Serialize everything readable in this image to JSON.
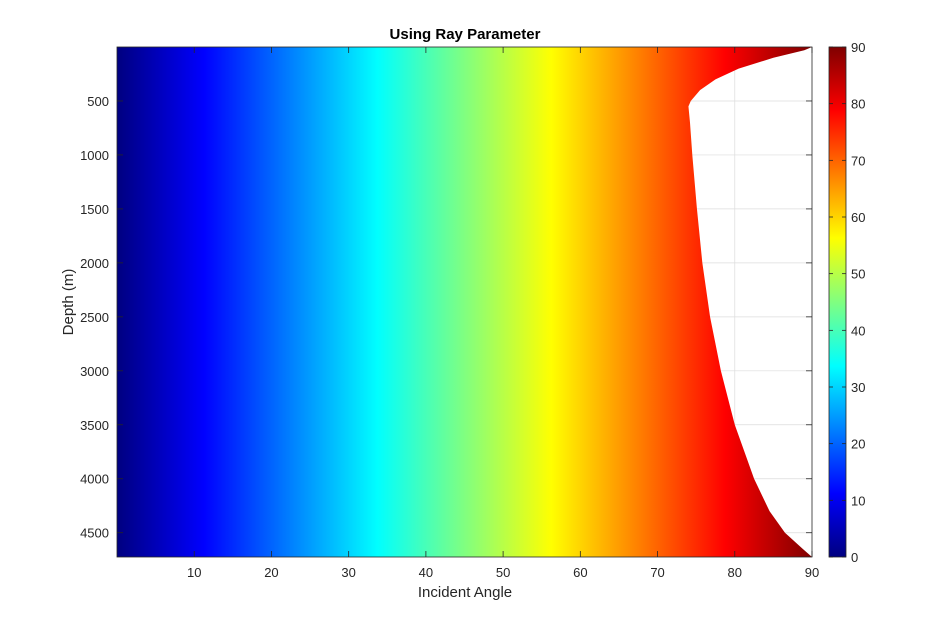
{
  "chart_data": {
    "type": "heatmap",
    "title": "Using Ray Parameter",
    "xlabel": "Incident Angle",
    "ylabel": "Depth (m)",
    "xlim": [
      0,
      90
    ],
    "ylim": [
      0,
      4725
    ],
    "y_reversed": true,
    "grid": true,
    "colormap": "jet",
    "x_ticks": [
      10,
      20,
      30,
      40,
      50,
      60,
      70,
      80,
      90
    ],
    "y_ticks": [
      500,
      1000,
      1500,
      2000,
      2500,
      3000,
      3500,
      4000,
      4500
    ],
    "colorbar": {
      "placement": "right",
      "range": [
        0,
        90
      ],
      "ticks": [
        0,
        10,
        20,
        30,
        40,
        50,
        60,
        70,
        80,
        90
      ]
    },
    "boundary": {
      "name": "maximum incident angle",
      "depth": [
        0,
        30,
        100,
        200,
        300,
        400,
        500,
        550,
        700,
        1000,
        1500,
        2000,
        2500,
        3000,
        3500,
        4000,
        4300,
        4500,
        4650,
        4725
      ],
      "angle": [
        90,
        89,
        85,
        80.5,
        77.5,
        75.5,
        74.3,
        74,
        74.2,
        74.5,
        75.1,
        75.8,
        76.8,
        78.2,
        80,
        82.5,
        84.5,
        86.5,
        88.8,
        90
      ]
    },
    "cusp_depth": 550
  }
}
